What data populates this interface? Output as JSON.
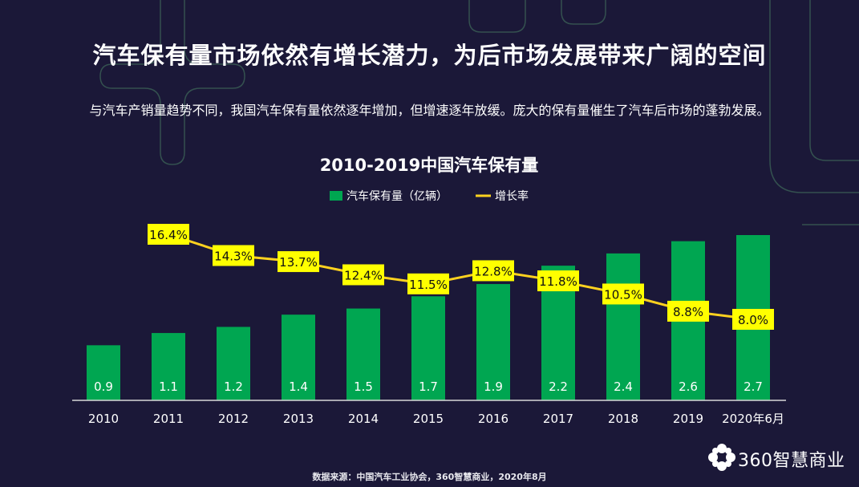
{
  "header": {
    "title": "汽车保有量市场依然有增长潜力，为后市场发展带来广阔的空间",
    "subtitle": "与汽车产销量趋势不同，我国汽车保有量依然逐年增加，但增速逐年放缓。庞大的保有量催生了汽车后市场的蓬勃发展。"
  },
  "chart_data": {
    "type": "bar",
    "title": "2010-2019中国汽车保有量",
    "categories": [
      "2010",
      "2011",
      "2012",
      "2013",
      "2014",
      "2015",
      "2016",
      "2017",
      "2018",
      "2019",
      "2020年6月"
    ],
    "series": [
      {
        "name": "汽车保有量（亿辆）",
        "type": "bar",
        "color": "#00a651",
        "values": [
          0.9,
          1.1,
          1.2,
          1.4,
          1.5,
          1.7,
          1.9,
          2.2,
          2.4,
          2.6,
          2.7
        ],
        "labels": [
          "0.9",
          "1.1",
          "1.2",
          "1.4",
          "1.5",
          "1.7",
          "1.9",
          "2.2",
          "2.4",
          "2.6",
          "2.7"
        ]
      },
      {
        "name": "增长率",
        "type": "line",
        "color": "#ffd21f",
        "label_bg": "#ffff00",
        "values": [
          null,
          16.4,
          14.3,
          13.7,
          12.4,
          11.5,
          12.8,
          11.8,
          10.5,
          8.8,
          8.0
        ],
        "labels": [
          "",
          "16.4%",
          "14.3%",
          "13.7%",
          "12.4%",
          "11.5%",
          "12.8%",
          "11.8%",
          "10.5%",
          "8.8%",
          "8.0%"
        ]
      }
    ],
    "legend_position": "top-center",
    "grid": false
  },
  "footer": {
    "source": "数据来源：中国汽车工业协会，360智慧商业，2020年8月",
    "logo_text": "360智慧商业",
    "logo_icon": "flower-logo-icon"
  },
  "colors": {
    "background": "#1b1838",
    "decoration": "#3f6a5a"
  }
}
